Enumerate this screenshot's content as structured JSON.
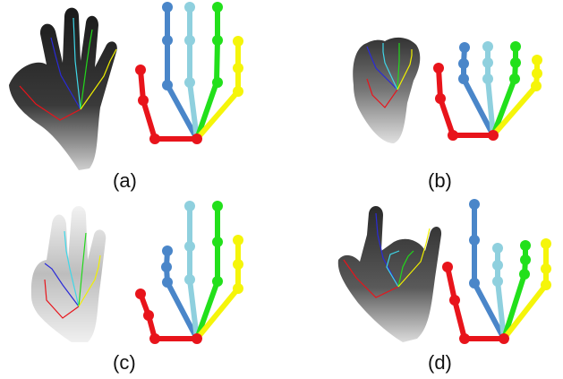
{
  "panels": [
    {
      "label": "(a)"
    },
    {
      "label": "(b)"
    },
    {
      "label": "(c)"
    },
    {
      "label": "(d)"
    }
  ],
  "finger_colors": {
    "thumb": "#e8141b",
    "index": "#4a86c9",
    "middle": "#8fd0de",
    "ring": "#22e01b",
    "pinky": "#f5f50a"
  },
  "marker_icon": "asterisk-joint-marker",
  "skeleton_icon": "hand-skeleton-model"
}
